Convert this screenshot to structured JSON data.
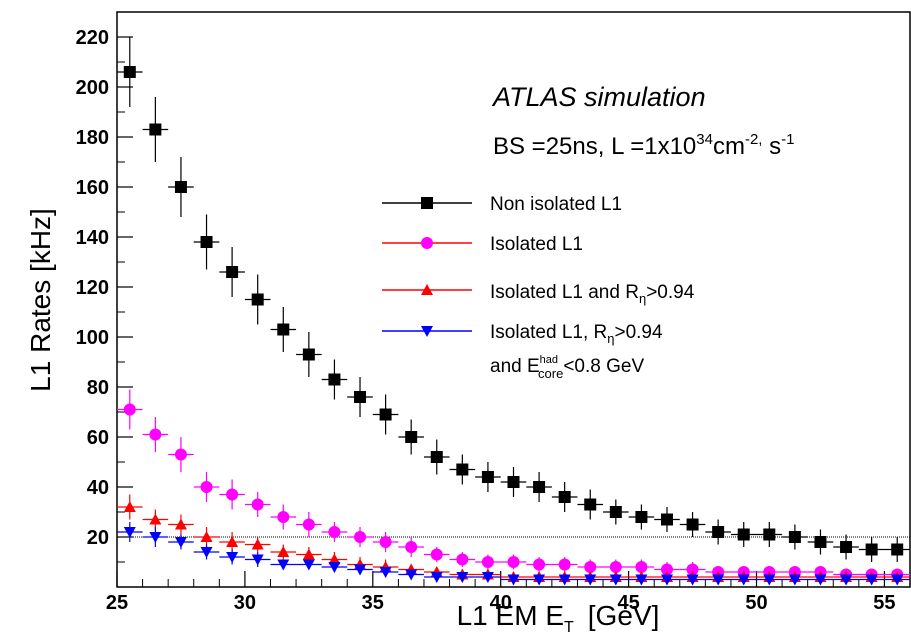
{
  "chart_data": {
    "type": "scatter",
    "title": "",
    "xlabel": "L1 EM E",
    "xlabel_sub": "T",
    "xlabel_unit": "[GeV]",
    "ylabel": "L1 Rates [kHz]",
    "xlim": [
      25,
      56
    ],
    "ylim": [
      0,
      230
    ],
    "xticks": [
      25,
      30,
      35,
      40,
      45,
      50,
      55
    ],
    "yticks": [
      20,
      40,
      60,
      80,
      100,
      120,
      140,
      160,
      180,
      200,
      220
    ],
    "reference_line_y": 20,
    "grid": false,
    "legend_position": "center-right",
    "annotation": {
      "line1": "ATLAS simulation",
      "line2_prefix": "BS =25ns, L =1x10",
      "line2_exp1": "34",
      "line2_mid": "cm",
      "line2_exp2": "-2,",
      "line2_unit": " s",
      "line2_exp3": "-1"
    },
    "x": [
      25.5,
      26.5,
      27.5,
      28.5,
      29.5,
      30.5,
      31.5,
      32.5,
      33.5,
      34.5,
      35.5,
      36.5,
      37.5,
      38.5,
      39.5,
      40.5,
      41.5,
      42.5,
      43.5,
      44.5,
      45.5,
      46.5,
      47.5,
      48.5,
      49.5,
      50.5,
      51.5,
      52.5,
      53.5,
      54.5,
      55.5
    ],
    "series": [
      {
        "name": "Non isolated L1",
        "color": "#000000",
        "marker": "square",
        "values": [
          206,
          183,
          160,
          138,
          126,
          115,
          103,
          93,
          83,
          76,
          69,
          60,
          52,
          47,
          44,
          42,
          40,
          36,
          33,
          30,
          28,
          27,
          25,
          22,
          21,
          21,
          20,
          18,
          16,
          15,
          15
        ],
        "errors": [
          14,
          13,
          12,
          11,
          10,
          10,
          9,
          9,
          8,
          8,
          8,
          7,
          7,
          6,
          6,
          6,
          6,
          6,
          6,
          5,
          5,
          5,
          5,
          5,
          5,
          5,
          5,
          5,
          5,
          5,
          5
        ]
      },
      {
        "name": "Isolated L1",
        "color": "#ff00ff",
        "marker": "circle",
        "values": [
          71,
          61,
          53,
          40,
          37,
          33,
          28,
          25,
          22,
          20,
          18,
          16,
          13,
          11,
          10,
          10,
          9,
          9,
          8,
          8,
          8,
          7,
          7,
          6,
          6,
          6,
          6,
          6,
          5,
          5,
          5
        ],
        "errors": [
          8,
          7,
          7,
          6,
          6,
          5,
          5,
          5,
          4,
          4,
          4,
          4,
          3,
          3,
          3,
          3,
          3,
          3,
          3,
          3,
          3,
          3,
          3,
          2,
          2,
          2,
          2,
          2,
          2,
          2,
          2
        ]
      },
      {
        "name": "Isolated L1 and  R",
        "name_sub": "η",
        "name_suffix": ">0.94",
        "color": "#ff0000",
        "marker": "triangle-up",
        "values": [
          32,
          27,
          25,
          20,
          18,
          17,
          14,
          13,
          11,
          9,
          8,
          7,
          6,
          5,
          5,
          4,
          4,
          4,
          4,
          4,
          4,
          4,
          4,
          4,
          4,
          4,
          4,
          4,
          4,
          4,
          4
        ],
        "errors": [
          5,
          4,
          4,
          4,
          4,
          3,
          3,
          3,
          3,
          3,
          3,
          2,
          2,
          2,
          2,
          2,
          2,
          2,
          2,
          2,
          2,
          2,
          2,
          2,
          2,
          2,
          2,
          2,
          2,
          2,
          2
        ]
      },
      {
        "name": "Isolated L1, R",
        "name_sub": "η",
        "name_suffix": ">0.94",
        "name_line2": "and E",
        "name_line2_sup": "had",
        "name_line2_sub": "core",
        "name_line2_suffix": "<0.8 GeV",
        "color": "#0000ff",
        "marker": "triangle-down",
        "values": [
          22,
          20,
          18,
          14,
          12,
          11,
          9,
          9,
          8,
          7,
          6,
          5,
          4,
          4,
          4,
          3,
          3,
          3,
          3,
          3,
          3,
          3,
          3,
          3,
          3,
          3,
          3,
          3,
          3,
          3,
          3
        ],
        "errors": [
          4,
          4,
          3,
          3,
          3,
          3,
          2,
          2,
          2,
          2,
          2,
          2,
          2,
          2,
          2,
          2,
          2,
          2,
          2,
          2,
          2,
          2,
          2,
          2,
          2,
          2,
          2,
          2,
          2,
          2,
          2
        ]
      }
    ]
  }
}
